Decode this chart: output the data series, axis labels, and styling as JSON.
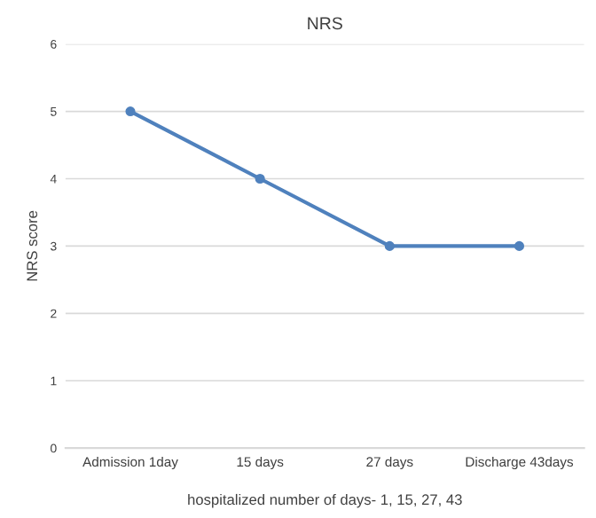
{
  "chart_data": {
    "type": "line",
    "title": "NRS",
    "xlabel": "hospitalized number of days- 1, 15, 27, 43",
    "ylabel": "NRS score",
    "categories": [
      "Admission 1day",
      "15 days",
      "27 days",
      "Discharge 43days"
    ],
    "series": [
      {
        "color": "#4f81bd",
        "values": [
          5,
          4,
          3,
          3
        ]
      }
    ],
    "ylim": [
      0,
      6
    ],
    "yticks": [
      0,
      1,
      2,
      3,
      4,
      5,
      6
    ],
    "grid": "y",
    "marker": "circle",
    "line_style": "solid"
  }
}
